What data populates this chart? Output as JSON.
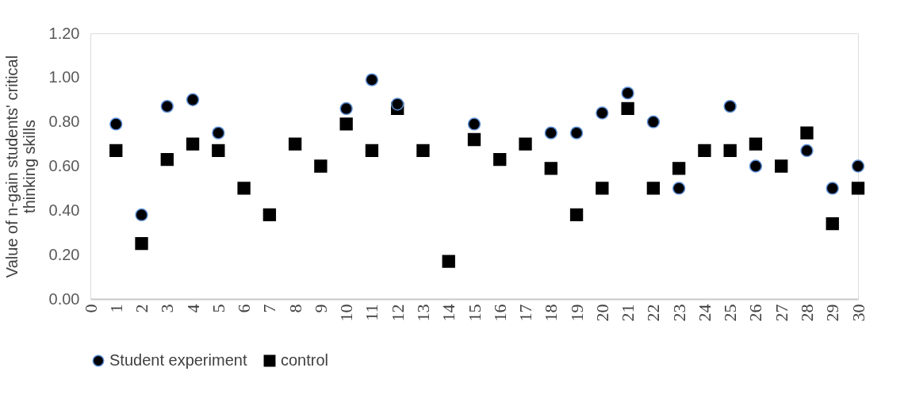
{
  "chart_data": {
    "type": "scatter",
    "ylabel": "Value of n-gain students' critical thinking skills",
    "x": [
      1,
      2,
      3,
      4,
      5,
      6,
      7,
      8,
      9,
      10,
      11,
      12,
      13,
      14,
      15,
      16,
      17,
      18,
      19,
      20,
      21,
      22,
      23,
      24,
      25,
      26,
      27,
      28,
      29,
      30
    ],
    "series": [
      {
        "name": "Student experiment",
        "color": "#000000",
        "marker": "circle",
        "values": [
          0.79,
          0.38,
          0.87,
          0.9,
          0.75,
          null,
          null,
          null,
          null,
          0.86,
          0.99,
          0.88,
          null,
          null,
          0.79,
          null,
          null,
          0.75,
          0.75,
          0.84,
          0.93,
          0.8,
          0.5,
          null,
          0.87,
          0.6,
          null,
          0.67,
          0.5,
          0.6
        ]
      },
      {
        "name": "control",
        "color": "#000000",
        "marker": "square",
        "values": [
          0.67,
          0.25,
          0.63,
          0.7,
          0.67,
          0.5,
          0.38,
          0.7,
          0.6,
          0.79,
          0.67,
          0.86,
          0.67,
          0.17,
          0.72,
          0.63,
          0.7,
          0.59,
          0.38,
          0.5,
          0.86,
          0.5,
          0.59,
          0.67,
          0.67,
          0.7,
          0.6,
          0.75,
          0.34,
          0.5
        ]
      }
    ],
    "xlim": [
      0,
      30
    ],
    "xticks": [
      0,
      1,
      2,
      3,
      4,
      5,
      6,
      7,
      8,
      9,
      10,
      11,
      12,
      13,
      14,
      15,
      16,
      17,
      18,
      19,
      20,
      21,
      22,
      23,
      24,
      25,
      26,
      27,
      28,
      29,
      30
    ],
    "ylim": [
      0,
      1.2
    ],
    "yticks": [
      {
        "value": 0,
        "label": "0.00"
      },
      {
        "value": 0.2,
        "label": "0.20"
      },
      {
        "value": 0.4,
        "label": "0.40"
      },
      {
        "value": 0.6,
        "label": "0.60"
      },
      {
        "value": 0.8,
        "label": "0.80"
      },
      {
        "value": 1.0,
        "label": "1.00"
      },
      {
        "value": 1.2,
        "label": "1.20"
      }
    ],
    "grid": false,
    "legend": "bottom"
  }
}
